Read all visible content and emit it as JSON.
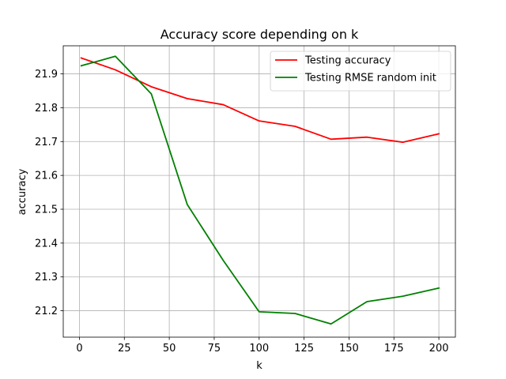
{
  "chart_data": {
    "type": "line",
    "title": "Accuracy score depending on k",
    "xlabel": "k",
    "ylabel": "accuracy",
    "xlim": [
      -9,
      209.2
    ],
    "ylim": [
      21.122,
      21.983
    ],
    "xticks": [
      0,
      25,
      50,
      75,
      100,
      125,
      150,
      175,
      200
    ],
    "xtick_labels": [
      "0",
      "25",
      "50",
      "75",
      "100",
      "125",
      "150",
      "175",
      "200"
    ],
    "yticks": [
      21.2,
      21.3,
      21.4,
      21.5,
      21.6,
      21.7,
      21.8,
      21.9
    ],
    "ytick_labels": [
      "21.2",
      "21.3",
      "21.4",
      "21.5",
      "21.6",
      "21.7",
      "21.8",
      "21.9"
    ],
    "grid": true,
    "legend_position": "upper right",
    "x": [
      1,
      20,
      40,
      60,
      80,
      100,
      120,
      140,
      160,
      180,
      200
    ],
    "series": [
      {
        "name": "Testing accuracy",
        "color": "#ff0000",
        "values": [
          21.947,
          21.912,
          21.862,
          21.827,
          21.809,
          21.761,
          21.745,
          21.707,
          21.713,
          21.698,
          21.723
        ]
      },
      {
        "name": "Testing RMSE random init",
        "color": "#008000",
        "values": [
          21.924,
          21.952,
          21.841,
          21.514,
          21.349,
          21.197,
          21.192,
          21.161,
          21.227,
          21.243,
          21.267
        ]
      }
    ]
  }
}
